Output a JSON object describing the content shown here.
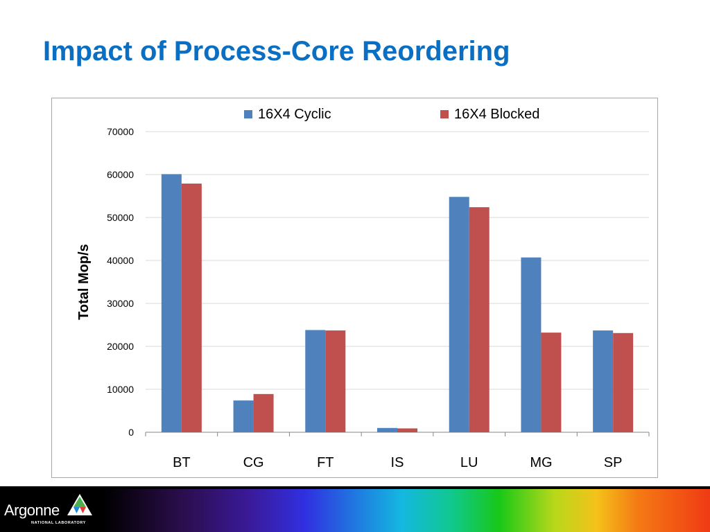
{
  "slide": {
    "title": "Impact of Process-Core Reordering"
  },
  "footer": {
    "logo_word": "Argonne",
    "logo_sub": "NATIONAL LABORATORY"
  },
  "chart_data": {
    "type": "bar",
    "categories": [
      "BT",
      "CG",
      "FT",
      "IS",
      "LU",
      "MG",
      "SP"
    ],
    "series": [
      {
        "name": "16X4 Cyclic",
        "color": "#4f81bd",
        "values": [
          60100,
          7400,
          23800,
          1000,
          54800,
          40700,
          23700
        ]
      },
      {
        "name": "16X4 Blocked",
        "color": "#c0504d",
        "values": [
          57900,
          8900,
          23700,
          900,
          52400,
          23200,
          23100
        ]
      }
    ],
    "ylabel": "Total Mop/s",
    "ylim": [
      0,
      70000
    ],
    "yticks": [
      0,
      10000,
      20000,
      30000,
      40000,
      50000,
      60000,
      70000
    ],
    "grid": true,
    "legend_position": "top"
  }
}
